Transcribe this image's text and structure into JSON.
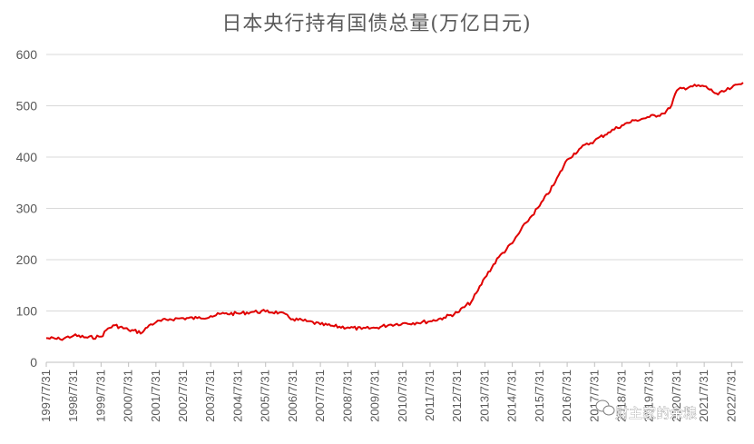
{
  "chart_data": {
    "type": "line",
    "title": "日本央行持有国债总量(万亿日元)",
    "xlabel": "",
    "ylabel": "",
    "ylim": [
      0,
      600
    ],
    "yticks": [
      0,
      100,
      200,
      300,
      400,
      500,
      600
    ],
    "grid": true,
    "legend": "none",
    "x_tick_labels": [
      "1997/7/31",
      "1998/7/31",
      "1999/7/31",
      "2000/7/31",
      "2001/7/31",
      "2002/7/31",
      "2003/7/31",
      "2004/7/31",
      "2005/7/31",
      "2006/7/31",
      "2007/7/31",
      "2008/7/31",
      "2009/7/31",
      "2010/7/31",
      "2011/7/31",
      "2012/7/31",
      "2013/7/31",
      "2014/7/31",
      "2015/7/31",
      "2016/7/31",
      "2017/7/31",
      "2018/7/31",
      "2019/7/31",
      "2020/7/31",
      "2021/7/31",
      "2022/7/31"
    ],
    "x_range": [
      "1997/7/31",
      "2022/12/31"
    ],
    "series": [
      {
        "color": "#e00000",
        "points": [
          [
            "1997/7/31",
            47
          ],
          [
            "1998/1/31",
            45
          ],
          [
            "1998/7/31",
            52
          ],
          [
            "1999/1/31",
            48
          ],
          [
            "1999/7/31",
            50
          ],
          [
            "1999/10/31",
            66
          ],
          [
            "2000/1/31",
            72
          ],
          [
            "2000/7/31",
            63
          ],
          [
            "2001/1/31",
            58
          ],
          [
            "2001/4/30",
            72
          ],
          [
            "2001/7/31",
            78
          ],
          [
            "2002/1/31",
            84
          ],
          [
            "2002/7/31",
            86
          ],
          [
            "2003/1/31",
            86
          ],
          [
            "2003/7/31",
            90
          ],
          [
            "2004/1/31",
            95
          ],
          [
            "2004/7/31",
            95
          ],
          [
            "2005/1/31",
            98
          ],
          [
            "2005/7/31",
            99
          ],
          [
            "2006/1/31",
            97
          ],
          [
            "2006/7/31",
            84
          ],
          [
            "2007/1/31",
            80
          ],
          [
            "2007/7/31",
            74
          ],
          [
            "2008/1/31",
            70
          ],
          [
            "2008/7/31",
            68
          ],
          [
            "2009/1/31",
            65
          ],
          [
            "2009/7/31",
            67
          ],
          [
            "2010/1/31",
            73
          ],
          [
            "2010/7/31",
            76
          ],
          [
            "2011/1/31",
            77
          ],
          [
            "2011/7/31",
            80
          ],
          [
            "2012/1/31",
            87
          ],
          [
            "2012/7/31",
            97
          ],
          [
            "2013/1/31",
            118
          ],
          [
            "2013/4/30",
            140
          ],
          [
            "2013/7/31",
            165
          ],
          [
            "2014/1/31",
            205
          ],
          [
            "2014/7/31",
            232
          ],
          [
            "2015/1/31",
            272
          ],
          [
            "2015/7/31",
            305
          ],
          [
            "2016/1/31",
            345
          ],
          [
            "2016/7/31",
            395
          ],
          [
            "2017/1/31",
            418
          ],
          [
            "2017/7/31",
            432
          ],
          [
            "2018/1/31",
            448
          ],
          [
            "2018/7/31",
            462
          ],
          [
            "2019/1/31",
            472
          ],
          [
            "2019/7/31",
            478
          ],
          [
            "2020/1/31",
            485
          ],
          [
            "2020/4/30",
            495
          ],
          [
            "2020/7/31",
            530
          ],
          [
            "2021/1/31",
            538
          ],
          [
            "2021/7/31",
            538
          ],
          [
            "2022/1/31",
            522
          ],
          [
            "2022/7/31",
            535
          ],
          [
            "2022/12/31",
            545
          ]
        ]
      }
    ]
  },
  "watermark": {
    "text": "财主家的余粮"
  }
}
